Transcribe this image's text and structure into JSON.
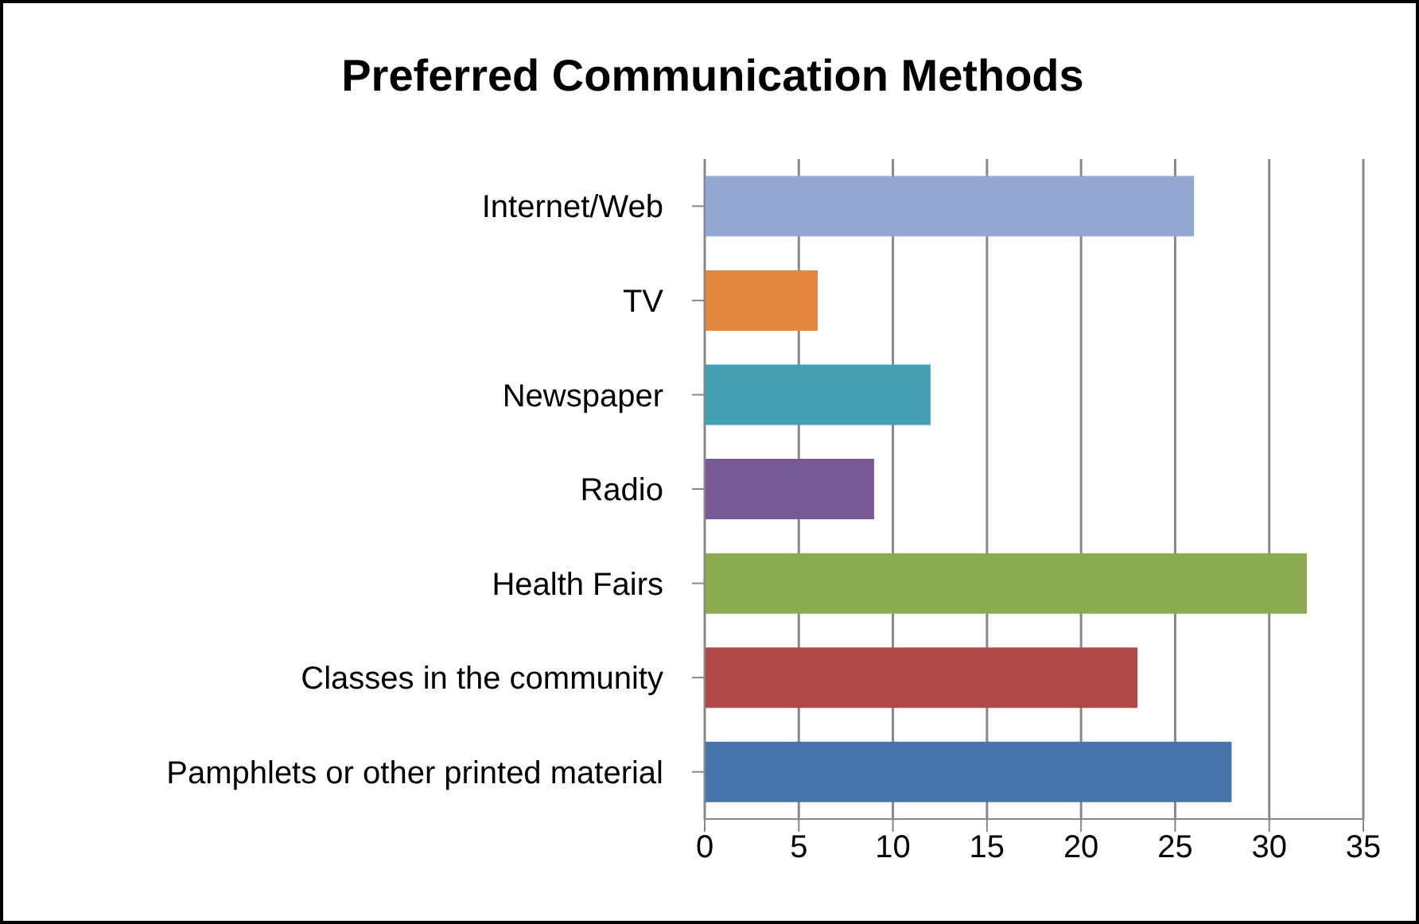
{
  "chart_data": {
    "type": "bar",
    "orientation": "horizontal",
    "title": "Preferred Communication Methods",
    "categories": [
      "Internet/Web",
      "TV",
      "Newspaper",
      "Radio",
      "Health Fairs",
      "Classes in the community",
      "Pamphlets or other printed material"
    ],
    "values": [
      26,
      6,
      12,
      9,
      32,
      23,
      28
    ],
    "colors": [
      "#94a9d2",
      "#e0863f",
      "#44a0b3",
      "#775a95",
      "#8caa4f",
      "#ae4846",
      "#4773aa"
    ],
    "xlim": [
      0,
      35
    ],
    "xticks": [
      0,
      5,
      10,
      15,
      20,
      25,
      30,
      35
    ],
    "grid": "x"
  }
}
